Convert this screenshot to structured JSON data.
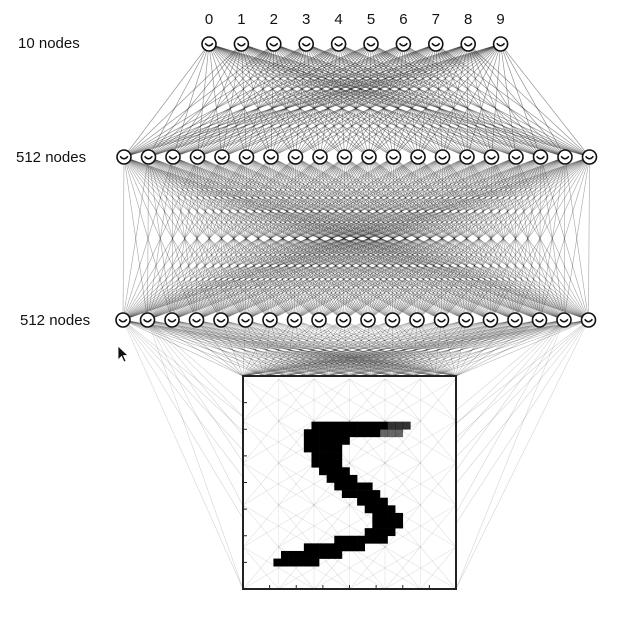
{
  "diagram": {
    "layers": [
      {
        "label": "10 nodes",
        "node_count": 10
      },
      {
        "label": "512 nodes",
        "node_count": 512
      },
      {
        "label": "512 nodes",
        "node_count": 512
      }
    ],
    "output_labels": [
      "0",
      "1",
      "2",
      "3",
      "4",
      "5",
      "6",
      "7",
      "8",
      "9"
    ],
    "input_image": {
      "grid": "28x28",
      "digit_shown": "5"
    },
    "colors": {
      "line": "#111111",
      "background": "#ffffff",
      "frame": "#222222"
    }
  }
}
